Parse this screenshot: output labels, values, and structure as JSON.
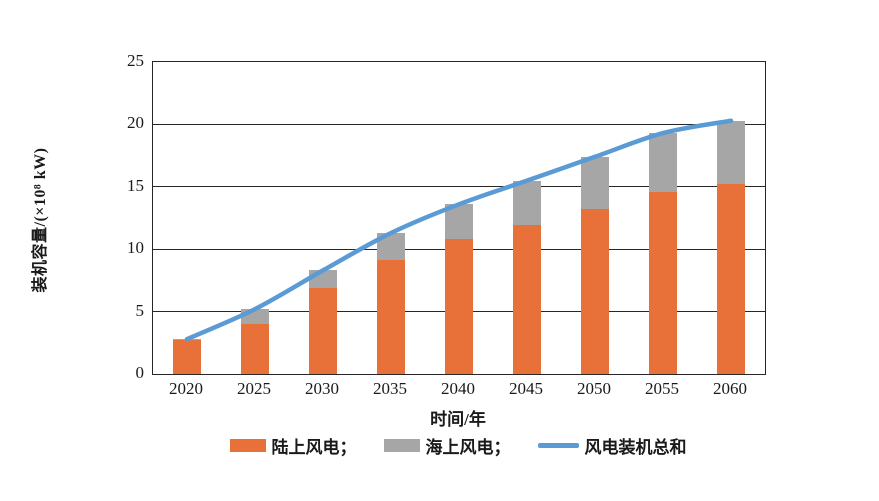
{
  "chart_data": {
    "type": "bar",
    "subtype": "stacked-bars-with-total-line",
    "title": "",
    "categories": [
      "2020",
      "2025",
      "2030",
      "2035",
      "2040",
      "2045",
      "2050",
      "2055",
      "2060"
    ],
    "series": [
      {
        "name": "陆上风电",
        "type": "bar",
        "color": "#E8713A",
        "values": [
          2.7,
          4.0,
          6.9,
          9.1,
          10.8,
          11.9,
          13.2,
          14.6,
          15.2
        ]
      },
      {
        "name": "海上风电",
        "type": "bar",
        "color": "#A6A6A6",
        "values": [
          0.1,
          1.2,
          1.4,
          2.2,
          2.8,
          3.6,
          4.2,
          4.7,
          5.1
        ]
      },
      {
        "name": "风电装机总和",
        "type": "line",
        "color": "#5B9BD5",
        "values": [
          2.8,
          5.2,
          8.3,
          11.3,
          13.6,
          15.5,
          17.4,
          19.3,
          20.3
        ]
      }
    ],
    "xlabel": "时间/年",
    "ylabel": "装机容量/(×10⁸ kW)",
    "ylim": [
      0,
      25
    ],
    "yticks": [
      0,
      5,
      10,
      15,
      20,
      25
    ],
    "gridlines": [
      5,
      10,
      15,
      20
    ],
    "grid": "horizontal",
    "plot_border": "full-box",
    "legend_position": "bottom-center",
    "legend": [
      {
        "label": "陆上风电；",
        "swatch": "bar",
        "color": "#E8713A"
      },
      {
        "label": "海上风电；",
        "swatch": "bar",
        "color": "#A6A6A6"
      },
      {
        "label": "风电装机总和",
        "swatch": "line",
        "color": "#5B9BD5"
      }
    ],
    "colors": {
      "onshore_bar": "#E8713A",
      "offshore_bar": "#A6A6A6",
      "total_line": "#5B9BD5",
      "axis_and_grid": "#262626",
      "background": "#ffffff"
    }
  }
}
